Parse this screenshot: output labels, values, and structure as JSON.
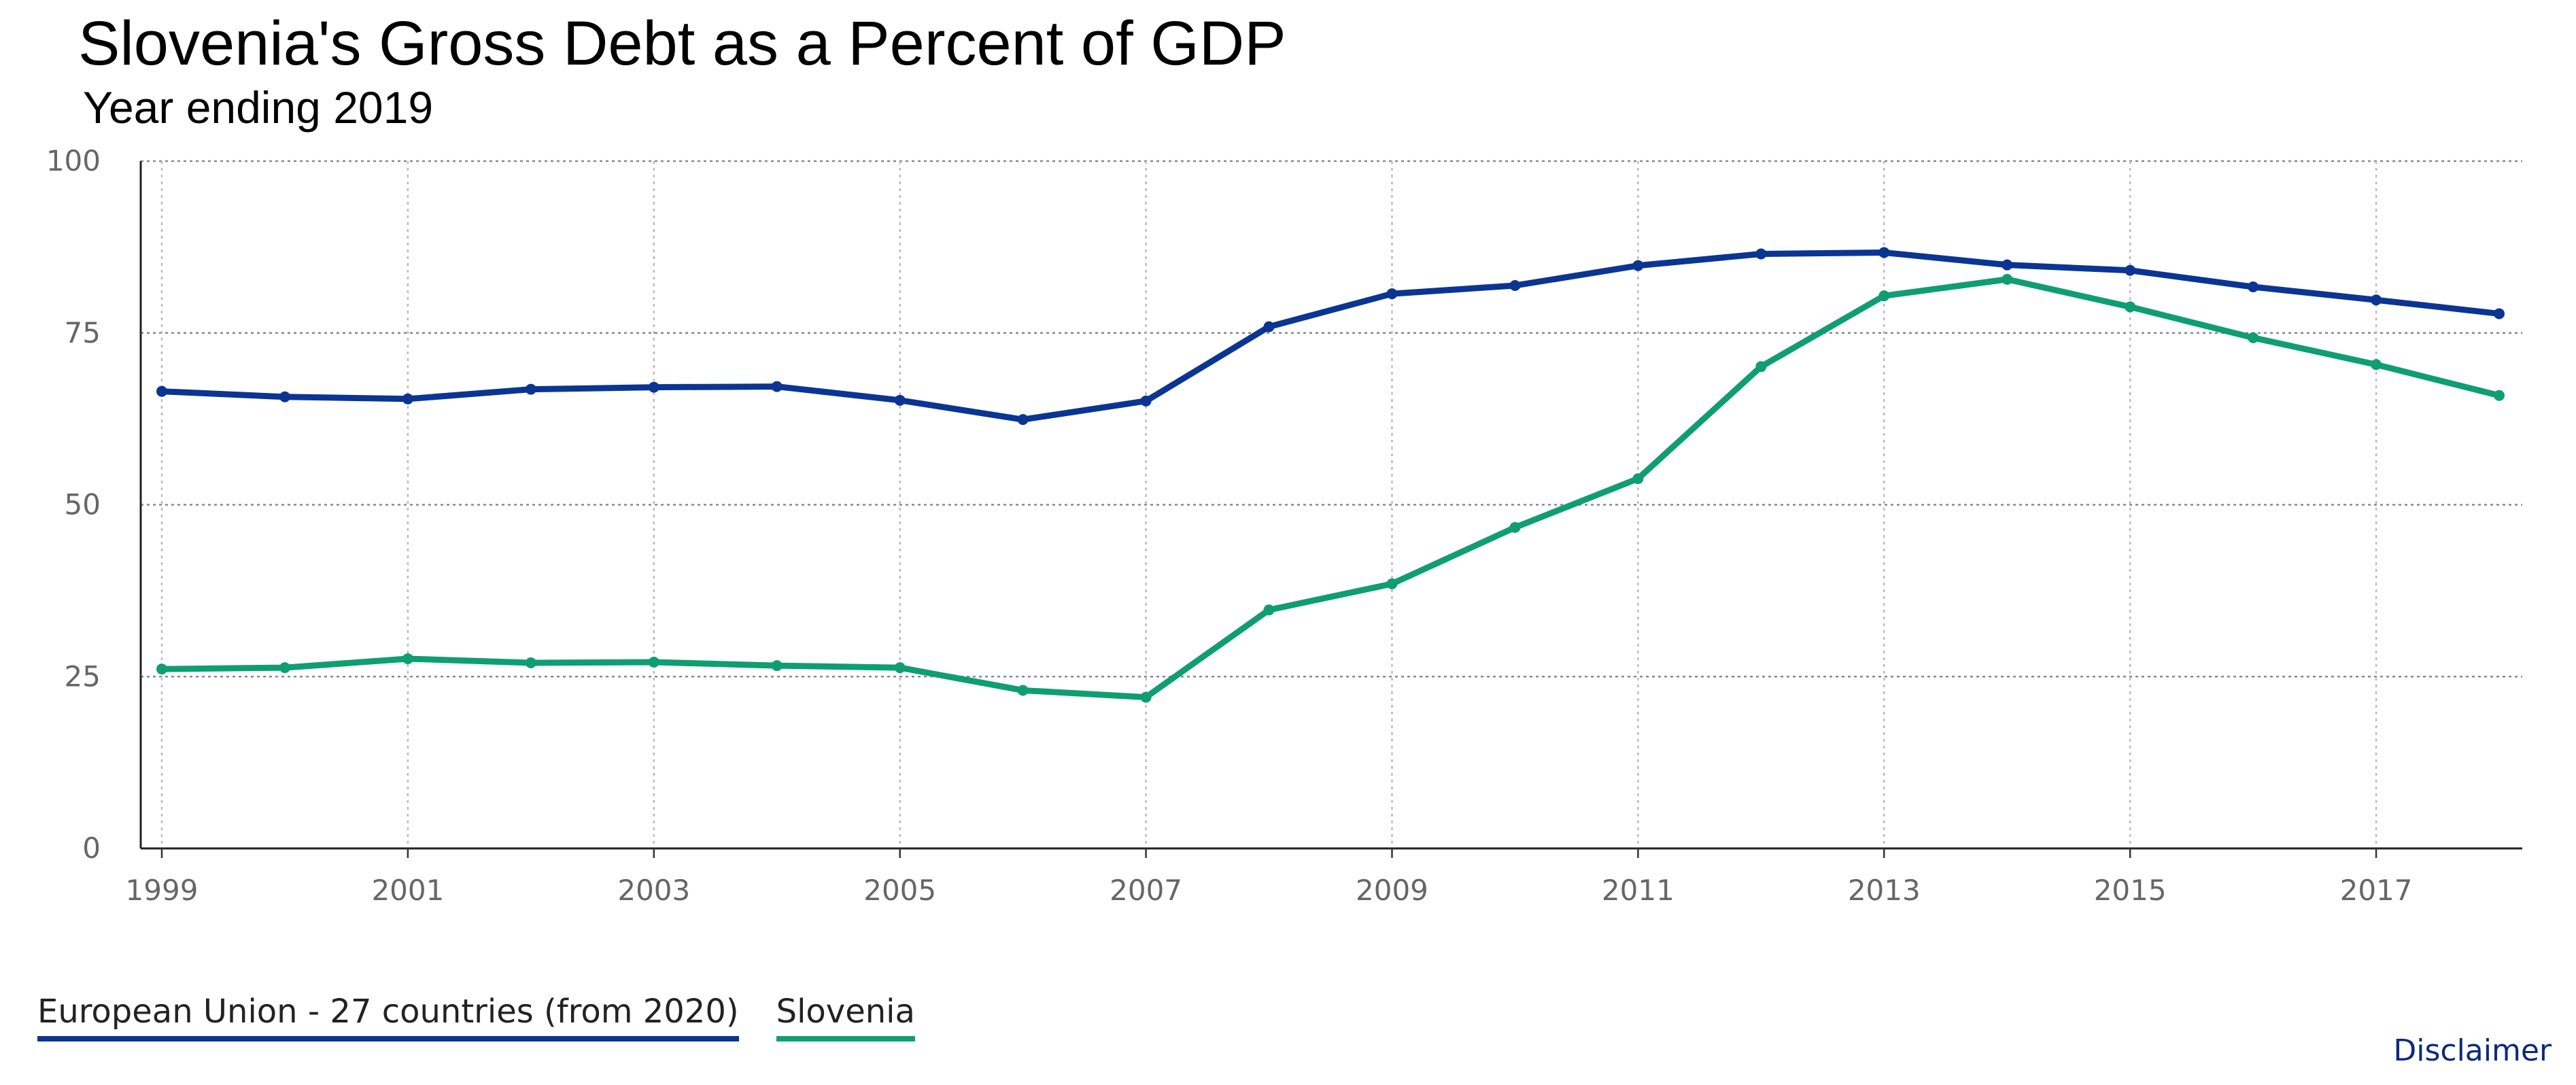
{
  "chart_data": {
    "type": "line",
    "title": "Slovenia's Gross Debt as a Percent of GDP",
    "subtitle": "Year ending 2019",
    "xlabel": "",
    "ylabel": "",
    "x": [
      1999,
      2000,
      2001,
      2002,
      2003,
      2004,
      2005,
      2006,
      2007,
      2008,
      2009,
      2010,
      2011,
      2012,
      2013,
      2014,
      2015,
      2016,
      2017,
      2018
    ],
    "x_ticks": [
      "1999",
      "2001",
      "2003",
      "2005",
      "2007",
      "2009",
      "2011",
      "2013",
      "2015",
      "2017"
    ],
    "y_ticks": [
      "0",
      "25",
      "50",
      "75",
      "100"
    ],
    "ylim": [
      0,
      100
    ],
    "xlim": [
      1999,
      2018
    ],
    "grid": true,
    "legend_position": "bottom-left",
    "series": [
      {
        "name": "European Union - 27 countries (from 2020)",
        "color": "#0b3593",
        "values": [
          66.5,
          65.7,
          65.4,
          66.8,
          67.1,
          67.2,
          65.2,
          62.4,
          65.1,
          75.9,
          80.7,
          81.9,
          84.8,
          86.5,
          86.7,
          84.9,
          84.1,
          81.7,
          79.8,
          77.8
        ]
      },
      {
        "name": "Slovenia",
        "color": "#0f9e72",
        "values": [
          26.1,
          26.3,
          27.6,
          27.0,
          27.1,
          26.6,
          26.3,
          23.0,
          22.0,
          34.7,
          38.5,
          46.7,
          53.8,
          70.1,
          80.4,
          82.8,
          78.8,
          74.3,
          70.4,
          65.9
        ]
      }
    ]
  },
  "footer": {
    "disclaimer_label": "Disclaimer"
  }
}
